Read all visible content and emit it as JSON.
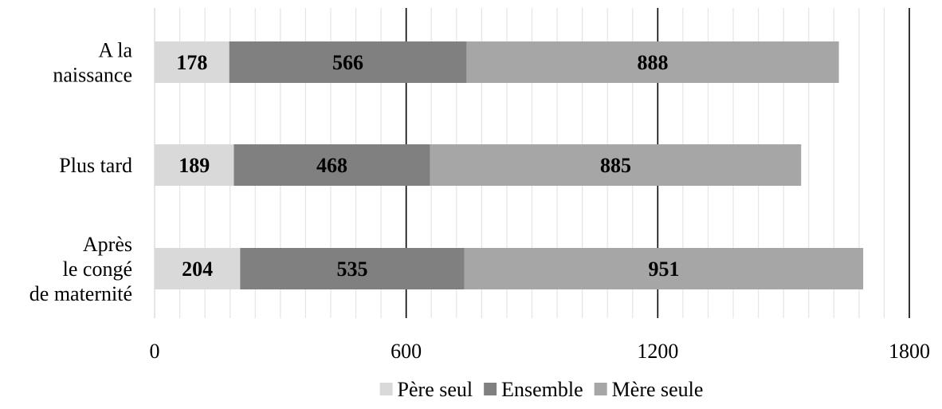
{
  "chart_data": {
    "type": "bar",
    "orientation": "horizontal",
    "stacked": true,
    "categories": [
      [
        "A la",
        "naissance"
      ],
      [
        "Plus tard"
      ],
      [
        "Après",
        "le congé",
        "de maternité"
      ]
    ],
    "series": [
      {
        "name": "Père seul",
        "values": [
          178,
          189,
          204
        ],
        "color": "#d9d9d9"
      },
      {
        "name": "Ensemble",
        "values": [
          566,
          468,
          535
        ],
        "color": "#808080"
      },
      {
        "name": "Mère seule",
        "values": [
          888,
          885,
          951
        ],
        "color": "#a6a6a6"
      }
    ],
    "xlim": [
      0,
      1800
    ],
    "xticks": [
      0,
      600,
      1200,
      1800
    ],
    "grid": {
      "major": true,
      "minor": true
    },
    "legend": "bottom",
    "title": "",
    "xlabel": "",
    "ylabel": ""
  }
}
